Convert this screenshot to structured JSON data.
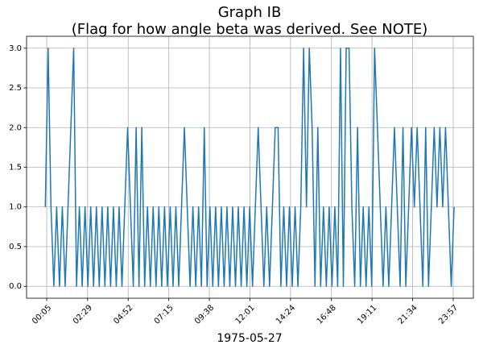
{
  "chart_data": {
    "type": "line",
    "title": "Graph IB",
    "subtitle": "(Flag for how angle beta was derived. See NOTE)",
    "xlabel": "1975-05-27",
    "color": "#1f77b4",
    "grid": true,
    "xlim": [
      -66,
      1508
    ],
    "ylim": [
      -0.15,
      3.15
    ],
    "xticks": [
      {
        "value": 5,
        "label": "00:05"
      },
      {
        "value": 149,
        "label": "02:29"
      },
      {
        "value": 292,
        "label": "04:52"
      },
      {
        "value": 435,
        "label": "07:15"
      },
      {
        "value": 578,
        "label": "09:38"
      },
      {
        "value": 721,
        "label": "12:01"
      },
      {
        "value": 864,
        "label": "14:24"
      },
      {
        "value": 1008,
        "label": "16:48"
      },
      {
        "value": 1151,
        "label": "19:11"
      },
      {
        "value": 1294,
        "label": "21:34"
      },
      {
        "value": 1437,
        "label": "23:57"
      }
    ],
    "yticks": [
      {
        "value": 0,
        "label": "0.0"
      },
      {
        "value": 0.5,
        "label": "0.5"
      },
      {
        "value": 1,
        "label": "1.0"
      },
      {
        "value": 1.5,
        "label": "1.5"
      },
      {
        "value": 2,
        "label": "2.0"
      },
      {
        "value": 2.5,
        "label": "2.5"
      },
      {
        "value": 3,
        "label": "3.0"
      }
    ],
    "x": [
      0,
      10,
      20,
      30,
      40,
      50,
      60,
      70,
      80,
      90,
      100,
      110,
      120,
      130,
      140,
      150,
      160,
      170,
      180,
      190,
      200,
      210,
      220,
      230,
      240,
      250,
      260,
      270,
      280,
      290,
      300,
      310,
      320,
      330,
      340,
      350,
      360,
      370,
      380,
      390,
      400,
      410,
      420,
      430,
      440,
      450,
      460,
      470,
      480,
      490,
      500,
      510,
      520,
      530,
      540,
      550,
      560,
      570,
      580,
      590,
      600,
      610,
      620,
      630,
      640,
      650,
      660,
      670,
      680,
      690,
      700,
      710,
      720,
      730,
      740,
      750,
      760,
      770,
      780,
      790,
      800,
      810,
      820,
      830,
      840,
      850,
      860,
      870,
      880,
      890,
      900,
      910,
      920,
      930,
      940,
      950,
      960,
      970,
      980,
      990,
      1000,
      1010,
      1020,
      1030,
      1040,
      1050,
      1060,
      1070,
      1080,
      1090,
      1100,
      1110,
      1120,
      1130,
      1140,
      1150,
      1160,
      1170,
      1180,
      1190,
      1200,
      1210,
      1220,
      1230,
      1240,
      1250,
      1260,
      1270,
      1280,
      1290,
      1300,
      1310,
      1320,
      1330,
      1340,
      1350,
      1360,
      1370,
      1380,
      1390,
      1400,
      1410,
      1420,
      1430,
      1440
    ],
    "values": [
      1,
      3,
      1,
      0,
      1,
      0,
      1,
      0,
      1,
      2,
      3,
      0,
      1,
      0,
      1,
      0,
      1,
      0,
      1,
      0,
      1,
      0,
      1,
      0,
      1,
      0,
      1,
      0,
      1,
      2,
      1,
      0,
      2,
      0,
      2,
      0,
      1,
      0,
      1,
      0,
      1,
      0,
      1,
      0,
      1,
      0,
      1,
      0,
      1,
      2,
      1,
      0,
      1,
      0,
      1,
      0,
      2,
      0,
      1,
      0,
      1,
      0,
      1,
      0,
      1,
      0,
      1,
      0,
      1,
      0,
      1,
      0,
      1,
      0,
      1,
      2,
      1,
      0,
      1,
      0,
      1,
      2,
      2,
      0,
      1,
      0,
      1,
      0,
      1,
      0,
      1,
      3,
      1,
      3,
      2,
      0,
      2,
      0,
      1,
      0,
      1,
      0,
      1,
      0,
      3,
      0,
      3,
      3,
      1,
      0,
      2,
      0,
      1,
      0,
      1,
      0,
      3,
      2,
      1,
      0,
      1,
      0,
      1,
      2,
      1,
      0,
      2,
      0,
      1,
      2,
      1,
      2,
      1,
      0,
      2,
      0,
      1,
      2,
      1,
      2,
      1,
      2,
      1,
      0,
      1
    ]
  }
}
